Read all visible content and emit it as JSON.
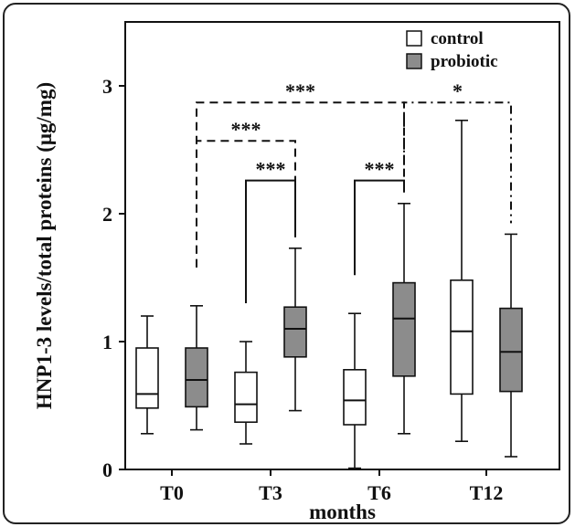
{
  "chart_data": {
    "type": "box",
    "title": "",
    "xlabel": "months",
    "ylabel": "HNP1-3 levels/total proteins (μg/mg)",
    "ylim": [
      0,
      3.5
    ],
    "yticks": [
      "0",
      "1",
      "2",
      "3"
    ],
    "categories": [
      "T0",
      "T3",
      "T6",
      "T12"
    ],
    "series": [
      {
        "name": "control",
        "color": "#ffffff",
        "boxes": [
          {
            "min": 0.28,
            "q1": 0.48,
            "median": 0.59,
            "q3": 0.95,
            "max": 1.2
          },
          {
            "min": 0.2,
            "q1": 0.37,
            "median": 0.51,
            "q3": 0.76,
            "max": 1.0
          },
          {
            "min": 0.01,
            "q1": 0.35,
            "median": 0.54,
            "q3": 0.78,
            "max": 1.22
          },
          {
            "min": 0.22,
            "q1": 0.59,
            "median": 1.08,
            "q3": 1.48,
            "max": 2.73
          }
        ]
      },
      {
        "name": "probiotic",
        "color": "#8c8c8c",
        "boxes": [
          {
            "min": 0.31,
            "q1": 0.49,
            "median": 0.7,
            "q3": 0.95,
            "max": 1.28
          },
          {
            "min": 0.46,
            "q1": 0.88,
            "median": 1.1,
            "q3": 1.27,
            "max": 1.73
          },
          {
            "min": 0.28,
            "q1": 0.73,
            "median": 1.18,
            "q3": 1.46,
            "max": 2.08
          },
          {
            "min": 0.1,
            "q1": 0.61,
            "median": 0.92,
            "q3": 1.26,
            "max": 1.84
          }
        ]
      }
    ],
    "significance": [
      {
        "label": "***",
        "from": "T3 control",
        "to": "T3 probiotic",
        "style": "solid",
        "y": 2.26
      },
      {
        "label": "***",
        "from": "T6 control",
        "to": "T6 probiotic",
        "style": "solid",
        "y": 2.26
      },
      {
        "label": "***",
        "from": "T0 probiotic",
        "to": "T3 probiotic",
        "style": "dashed",
        "y": 2.57
      },
      {
        "label": "***",
        "from": "T0 probiotic",
        "to": "T6 probiotic",
        "style": "dashed",
        "y": 2.87
      },
      {
        "label": "*",
        "from": "T6 probiotic",
        "to": "T12 probiotic",
        "style": "dash-dot",
        "y": 2.87
      }
    ],
    "legend": {
      "position": "top-right",
      "entries": [
        "control",
        "probiotic"
      ]
    }
  }
}
